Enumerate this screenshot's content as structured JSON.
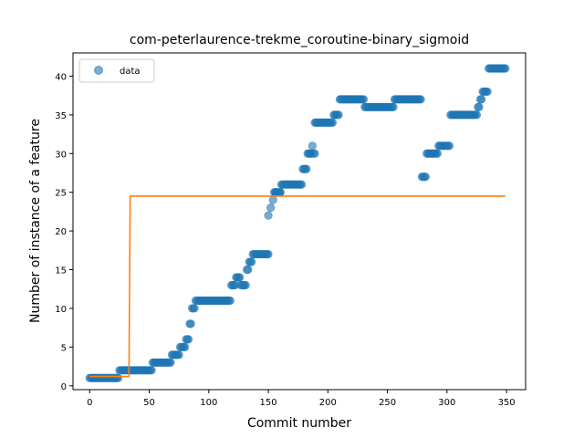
{
  "chart_data": {
    "type": "scatter",
    "title": "com-peterlaurence-trekme_coroutine-binary_sigmoid",
    "xlabel": "Commit number",
    "ylabel": "Number of instance of a feature",
    "xlim": [
      -14,
      366
    ],
    "ylim": [
      -0.5,
      43
    ],
    "xticks": [
      0,
      50,
      100,
      150,
      200,
      250,
      300,
      350
    ],
    "yticks": [
      0,
      5,
      10,
      15,
      20,
      25,
      30,
      35,
      40
    ],
    "grid": false,
    "legend": {
      "position": "top-left",
      "entries": [
        "data"
      ]
    },
    "colors": {
      "points": "#1f77b4",
      "fit": "#ff7f0e"
    },
    "segments": [
      [
        0,
        24,
        1
      ],
      [
        25,
        48,
        2
      ],
      [
        49,
        52,
        2
      ],
      [
        53,
        60,
        3
      ],
      [
        61,
        68,
        3
      ],
      [
        69,
        75,
        4
      ],
      [
        76,
        80,
        5
      ],
      [
        81,
        83,
        6
      ],
      [
        84,
        85,
        8
      ],
      [
        86,
        88,
        10
      ],
      [
        89,
        118,
        11
      ],
      [
        119,
        122,
        13
      ],
      [
        123,
        126,
        14
      ],
      [
        127,
        131,
        13
      ],
      [
        132,
        133,
        15
      ],
      [
        134,
        136,
        16
      ],
      [
        137,
        150,
        17
      ]
    ],
    "extra_points": [
      [
        150,
        22
      ],
      [
        152,
        23
      ],
      [
        154,
        24
      ],
      [
        156,
        25
      ],
      [
        160,
        25
      ]
    ],
    "segments2": [
      [
        155,
        160,
        25
      ],
      [
        161,
        178,
        26
      ],
      [
        179,
        182,
        28
      ],
      [
        183,
        186,
        30
      ],
      [
        187,
        187,
        31
      ],
      [
        188,
        189,
        30
      ],
      [
        189,
        204,
        34
      ],
      [
        205,
        209,
        35
      ],
      [
        210,
        230,
        37
      ],
      [
        231,
        255,
        36
      ],
      [
        256,
        278,
        37
      ],
      [
        279,
        282,
        27
      ],
      [
        283,
        292,
        30
      ],
      [
        293,
        302,
        31
      ],
      [
        303,
        325,
        35
      ],
      [
        326,
        327,
        36
      ],
      [
        328,
        329,
        37
      ],
      [
        330,
        334,
        38
      ],
      [
        335,
        349,
        41
      ]
    ],
    "fit_line": {
      "x": [
        0,
        33,
        34,
        349
      ],
      "y": [
        1.2,
        1.2,
        24.5,
        24.5
      ]
    }
  },
  "legend_label": "data"
}
